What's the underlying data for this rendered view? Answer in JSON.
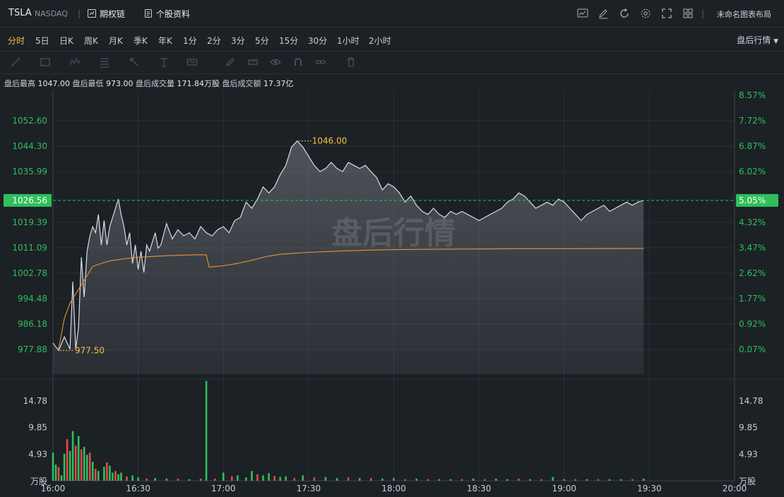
{
  "header": {
    "symbol": "TSLA",
    "exchange": "NASDAQ",
    "option_chain": "期权链",
    "stock_profile": "个股资料",
    "layout_name": "未命名图表布局",
    "icons": [
      "indicator-icon",
      "draw-edit-icon",
      "refresh-icon",
      "settings-icon",
      "fullscreen-icon",
      "layout-grid-icon"
    ]
  },
  "timeframes": [
    {
      "label": "分时",
      "active": true
    },
    {
      "label": "5日"
    },
    {
      "label": "日K"
    },
    {
      "label": "周K"
    },
    {
      "label": "月K"
    },
    {
      "label": "季K"
    },
    {
      "label": "年K"
    },
    {
      "label": "1分"
    },
    {
      "label": "2分"
    },
    {
      "label": "3分"
    },
    {
      "label": "5分"
    },
    {
      "label": "15分"
    },
    {
      "label": "30分"
    },
    {
      "label": "1小时"
    },
    {
      "label": "2小时"
    }
  ],
  "session_selector": "盘后行情",
  "draw_tools": [
    "line-tool-icon",
    "rect-tool-icon",
    "wave-tool-icon",
    "fib-tool-icon",
    "arrow-tool-icon",
    "text-tool-icon",
    "measure-tool-icon",
    "pen-tool-icon",
    "ruler-tool-icon",
    "eye-icon",
    "magnet-icon",
    "link-icon",
    "trash-icon"
  ],
  "stats": {
    "high_label": "盘后最高",
    "high": "1047.00",
    "low_label": "盘后最低",
    "low": "973.00",
    "vol_label": "盘后成交量",
    "vol": "171.84万股",
    "amt_label": "盘后成交额",
    "amt": "17.37亿"
  },
  "watermark": "盘后行情",
  "colors": {
    "up": "#2fbf5b",
    "down": "#e5484d",
    "price": "#d8dce3",
    "avg": "#e8913a",
    "highlight": "#f6c23e",
    "bg": "#1c2126"
  },
  "chart_data": {
    "type": "line",
    "x_ticks": [
      "16:00",
      "16:30",
      "17:00",
      "17:30",
      "18:00",
      "18:30",
      "19:00",
      "19:30",
      "20:00"
    ],
    "price_ticks": [
      "1052.60",
      "1044.30",
      "1035.99",
      "1019.39",
      "1011.09",
      "1002.78",
      "994.48",
      "986.18",
      "977.88"
    ],
    "pct_ticks": [
      "8.57%",
      "7.72%",
      "6.87%",
      "6.02%",
      "4.32%",
      "3.47%",
      "2.62%",
      "1.77%",
      "0.92%",
      "0.07%"
    ],
    "current_price": "1026.56",
    "current_pct": "5.05%",
    "high_label": "1046.00",
    "low_label": "977.50",
    "volume_ticks": [
      "14.78",
      "9.85",
      "4.93"
    ],
    "volume_unit": "万股",
    "series": [
      {
        "name": "price",
        "values": [
          [
            "16:00",
            980
          ],
          [
            "16:02",
            977.5
          ],
          [
            "16:04",
            982
          ],
          [
            "16:06",
            978
          ],
          [
            "16:07",
            1000
          ],
          [
            "16:08",
            978
          ],
          [
            "16:09",
            985
          ],
          [
            "16:10",
            1008
          ],
          [
            "16:11",
            995
          ],
          [
            "16:12",
            1010
          ],
          [
            "16:13",
            1015
          ],
          [
            "16:14",
            1018
          ],
          [
            "16:15",
            1016
          ],
          [
            "16:16",
            1022
          ],
          [
            "16:17",
            1012
          ],
          [
            "16:18",
            1020
          ],
          [
            "16:19",
            1012
          ],
          [
            "16:20",
            1018
          ],
          [
            "16:22",
            1024
          ],
          [
            "16:23",
            1027
          ],
          [
            "16:24",
            1022
          ],
          [
            "16:25",
            1018
          ],
          [
            "16:26",
            1012
          ],
          [
            "16:27",
            1016
          ],
          [
            "16:28",
            1006
          ],
          [
            "16:29",
            1012
          ],
          [
            "16:30",
            1004
          ],
          [
            "16:31",
            1010
          ],
          [
            "16:32",
            1003
          ],
          [
            "16:33",
            1012
          ],
          [
            "16:34",
            1010
          ],
          [
            "16:35",
            1013
          ],
          [
            "16:36",
            1016
          ],
          [
            "16:37",
            1011
          ],
          [
            "16:38",
            1012
          ],
          [
            "16:40",
            1019
          ],
          [
            "16:42",
            1014
          ],
          [
            "16:44",
            1017
          ],
          [
            "16:46",
            1015
          ],
          [
            "16:48",
            1016
          ],
          [
            "16:50",
            1014
          ],
          [
            "16:52",
            1018
          ],
          [
            "16:54",
            1016
          ],
          [
            "16:56",
            1015
          ],
          [
            "16:58",
            1017
          ],
          [
            "17:00",
            1018
          ],
          [
            "17:02",
            1016
          ],
          [
            "17:04",
            1020
          ],
          [
            "17:06",
            1021
          ],
          [
            "17:08",
            1026
          ],
          [
            "17:10",
            1024
          ],
          [
            "17:12",
            1027
          ],
          [
            "17:14",
            1031
          ],
          [
            "17:16",
            1029
          ],
          [
            "17:18",
            1031
          ],
          [
            "17:20",
            1035
          ],
          [
            "17:22",
            1038
          ],
          [
            "17:24",
            1044
          ],
          [
            "17:26",
            1046
          ],
          [
            "17:28",
            1044
          ],
          [
            "17:30",
            1041
          ],
          [
            "17:32",
            1038
          ],
          [
            "17:34",
            1036
          ],
          [
            "17:36",
            1037
          ],
          [
            "17:38",
            1039
          ],
          [
            "17:40",
            1037
          ],
          [
            "17:42",
            1036
          ],
          [
            "17:44",
            1039
          ],
          [
            "17:46",
            1038
          ],
          [
            "17:48",
            1037
          ],
          [
            "17:50",
            1038
          ],
          [
            "17:52",
            1036
          ],
          [
            "17:54",
            1034
          ],
          [
            "17:56",
            1030
          ],
          [
            "17:58",
            1032
          ],
          [
            "18:00",
            1031
          ],
          [
            "18:02",
            1029
          ],
          [
            "18:04",
            1026
          ],
          [
            "18:06",
            1028
          ],
          [
            "18:08",
            1025
          ],
          [
            "18:10",
            1023
          ],
          [
            "18:12",
            1022
          ],
          [
            "18:14",
            1024
          ],
          [
            "18:16",
            1022
          ],
          [
            "18:18",
            1021
          ],
          [
            "18:20",
            1023
          ],
          [
            "18:22",
            1022
          ],
          [
            "18:24",
            1023
          ],
          [
            "18:26",
            1022
          ],
          [
            "18:28",
            1021
          ],
          [
            "18:30",
            1020
          ],
          [
            "18:32",
            1021
          ],
          [
            "18:34",
            1022
          ],
          [
            "18:36",
            1023
          ],
          [
            "18:38",
            1024
          ],
          [
            "18:40",
            1026
          ],
          [
            "18:42",
            1027
          ],
          [
            "18:44",
            1029
          ],
          [
            "18:46",
            1028
          ],
          [
            "18:48",
            1026
          ],
          [
            "18:50",
            1024
          ],
          [
            "18:52",
            1025
          ],
          [
            "18:54",
            1026
          ],
          [
            "18:56",
            1025
          ],
          [
            "18:58",
            1027
          ],
          [
            "19:00",
            1026
          ],
          [
            "19:02",
            1024
          ],
          [
            "19:04",
            1022
          ],
          [
            "19:06",
            1020
          ],
          [
            "19:08",
            1022
          ],
          [
            "19:10",
            1023
          ],
          [
            "19:12",
            1024
          ],
          [
            "19:14",
            1025
          ],
          [
            "19:16",
            1023
          ],
          [
            "19:18",
            1024
          ],
          [
            "19:20",
            1025
          ],
          [
            "19:22",
            1026
          ],
          [
            "19:24",
            1025
          ],
          [
            "19:26",
            1026
          ],
          [
            "19:28",
            1026.56
          ]
        ]
      },
      {
        "name": "average",
        "values": [
          [
            "16:02",
            978
          ],
          [
            "16:04",
            988
          ],
          [
            "16:06",
            993
          ],
          [
            "16:08",
            996
          ],
          [
            "16:10",
            999
          ],
          [
            "16:12",
            1002
          ],
          [
            "16:14",
            1005
          ],
          [
            "16:17",
            1006
          ],
          [
            "16:20",
            1006.8
          ],
          [
            "16:25",
            1007.5
          ],
          [
            "16:30",
            1008
          ],
          [
            "16:40",
            1008.5
          ],
          [
            "16:50",
            1008.8
          ],
          [
            "16:54",
            1008.8
          ],
          [
            "16:55",
            1004.8
          ],
          [
            "17:00",
            1005.2
          ],
          [
            "17:05",
            1006
          ],
          [
            "17:10",
            1007
          ],
          [
            "17:15",
            1008.2
          ],
          [
            "17:20",
            1009
          ],
          [
            "17:30",
            1009.6
          ],
          [
            "17:40",
            1010
          ],
          [
            "17:50",
            1010.3
          ],
          [
            "18:00",
            1010.5
          ],
          [
            "18:15",
            1010.6
          ],
          [
            "18:30",
            1010.7
          ],
          [
            "18:45",
            1010.8
          ],
          [
            "19:00",
            1010.8
          ],
          [
            "19:28",
            1010.85
          ]
        ]
      }
    ],
    "volume": [
      [
        "16:00",
        5.2,
        "up"
      ],
      [
        "16:01",
        3.0,
        "up"
      ],
      [
        "16:02",
        2.5,
        "down"
      ],
      [
        "16:03",
        1.0,
        "up"
      ],
      [
        "16:04",
        5.0,
        "up"
      ],
      [
        "16:05",
        7.7,
        "down"
      ],
      [
        "16:06",
        5.5,
        "up"
      ],
      [
        "16:07",
        9.2,
        "up"
      ],
      [
        "16:08",
        6.5,
        "down"
      ],
      [
        "16:09",
        8.3,
        "up"
      ],
      [
        "16:10",
        5.8,
        "down"
      ],
      [
        "16:11",
        6.3,
        "up"
      ],
      [
        "16:12",
        4.8,
        "up"
      ],
      [
        "16:13",
        5.2,
        "down"
      ],
      [
        "16:14",
        3.5,
        "up"
      ],
      [
        "16:15",
        2.2,
        "down"
      ],
      [
        "16:16",
        1.8,
        "up"
      ],
      [
        "16:18",
        2.6,
        "up"
      ],
      [
        "16:19",
        3.4,
        "down"
      ],
      [
        "16:20",
        2.8,
        "up"
      ],
      [
        "16:21",
        1.5,
        "up"
      ],
      [
        "16:22",
        1.8,
        "down"
      ],
      [
        "16:23",
        1.2,
        "up"
      ],
      [
        "16:24",
        1.5,
        "up"
      ],
      [
        "16:26",
        0.8,
        "down"
      ],
      [
        "16:28",
        1.0,
        "up"
      ],
      [
        "16:30",
        0.6,
        "up"
      ],
      [
        "16:33",
        0.4,
        "down"
      ],
      [
        "16:36",
        0.5,
        "up"
      ],
      [
        "16:40",
        0.4,
        "up"
      ],
      [
        "16:44",
        0.4,
        "down"
      ],
      [
        "16:48",
        0.3,
        "up"
      ],
      [
        "16:52",
        0.4,
        "down"
      ],
      [
        "16:54",
        18.5,
        "up"
      ],
      [
        "16:57",
        0.4,
        "down"
      ],
      [
        "17:00",
        1.5,
        "up"
      ],
      [
        "17:03",
        0.8,
        "down"
      ],
      [
        "17:05",
        1.0,
        "up"
      ],
      [
        "17:08",
        0.6,
        "up"
      ],
      [
        "17:10",
        1.8,
        "up"
      ],
      [
        "17:12",
        1.2,
        "down"
      ],
      [
        "17:14",
        1.0,
        "up"
      ],
      [
        "17:16",
        1.4,
        "up"
      ],
      [
        "17:18",
        0.9,
        "down"
      ],
      [
        "17:20",
        0.7,
        "up"
      ],
      [
        "17:22",
        0.8,
        "up"
      ],
      [
        "17:25",
        0.5,
        "down"
      ],
      [
        "17:28",
        1.0,
        "up"
      ],
      [
        "17:32",
        0.6,
        "down"
      ],
      [
        "17:36",
        0.7,
        "up"
      ],
      [
        "17:40",
        0.5,
        "up"
      ],
      [
        "17:44",
        0.6,
        "down"
      ],
      [
        "17:48",
        0.5,
        "up"
      ],
      [
        "17:52",
        0.5,
        "down"
      ],
      [
        "17:56",
        0.4,
        "up"
      ],
      [
        "18:00",
        0.5,
        "up"
      ],
      [
        "18:04",
        0.3,
        "down"
      ],
      [
        "18:08",
        0.4,
        "up"
      ],
      [
        "18:12",
        0.3,
        "down"
      ],
      [
        "18:16",
        0.3,
        "up"
      ],
      [
        "18:20",
        0.3,
        "up"
      ],
      [
        "18:24",
        0.3,
        "down"
      ],
      [
        "18:28",
        0.4,
        "up"
      ],
      [
        "18:32",
        0.3,
        "down"
      ],
      [
        "18:36",
        0.4,
        "up"
      ],
      [
        "18:40",
        0.3,
        "up"
      ],
      [
        "18:44",
        0.4,
        "down"
      ],
      [
        "18:48",
        0.3,
        "up"
      ],
      [
        "18:52",
        0.3,
        "down"
      ],
      [
        "18:56",
        0.7,
        "up"
      ],
      [
        "19:00",
        0.3,
        "up"
      ],
      [
        "19:04",
        0.3,
        "down"
      ],
      [
        "19:08",
        0.3,
        "up"
      ],
      [
        "19:12",
        0.3,
        "down"
      ],
      [
        "19:16",
        0.3,
        "up"
      ],
      [
        "19:20",
        0.3,
        "up"
      ],
      [
        "19:24",
        0.3,
        "down"
      ],
      [
        "19:28",
        0.4,
        "up"
      ]
    ]
  }
}
